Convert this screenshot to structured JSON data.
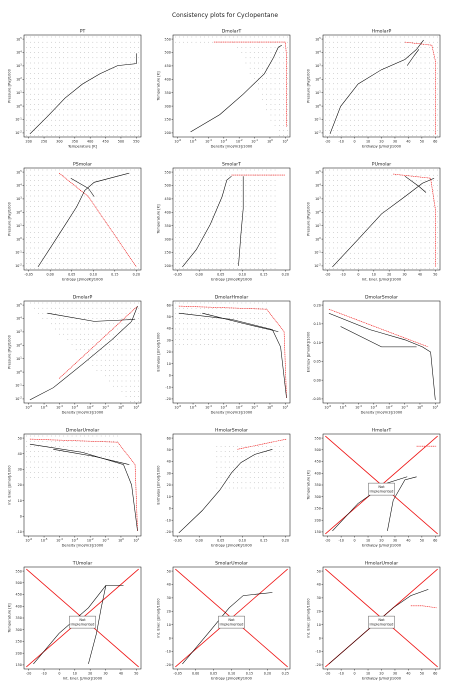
{
  "figure": {
    "title": "Consistency plots for Cyclopentane"
  },
  "colors": {
    "main_curve": "#000000",
    "dots": "#000000",
    "reference": "#ee1111",
    "frame": "#000000"
  },
  "chart_data": [
    {
      "id": "PT",
      "type": "line",
      "title": "PT",
      "xlabel": "Temperature [K]",
      "ylabel": "Pressure [Pa]/1000",
      "xscale": "linear",
      "yscale": "log",
      "xticks": [
        "200",
        "250",
        "300",
        "350",
        "400",
        "450",
        "500",
        "550"
      ],
      "yticks": [
        "10^-2",
        "10^-1",
        "10^0",
        "10^1",
        "10^2",
        "10^3",
        "10^4",
        "10^5"
      ],
      "curves": [
        {
          "x": [
            180,
            220,
            260,
            300,
            340,
            380,
            420,
            460,
            490,
            511
          ],
          "y": [
            0.01,
            0.09,
            0.6,
            3,
            10,
            40,
            120,
            450,
            1200,
            4500
          ]
        }
      ]
    },
    {
      "id": "DmolarT",
      "type": "line",
      "title": "DmolarT",
      "xlabel": "Density [mol/m3]/1000",
      "ylabel": "Temperature [K]",
      "xscale": "log",
      "yscale": "linear",
      "xticks": [
        "10^-6",
        "10^-5",
        "10^-4",
        "10^-3",
        "10^-2",
        "10^-1",
        "10^0",
        "10^1"
      ],
      "yticks": [
        "200",
        "250",
        "300",
        "350",
        "400",
        "450",
        "500",
        "550"
      ]
    },
    {
      "id": "HmolarP",
      "type": "line",
      "title": "HmolarP",
      "xlabel": "Enthalpy [J/mol]/1000",
      "ylabel": "Pressure [Pa]/1000",
      "xscale": "linear",
      "yscale": "log",
      "xticks": [
        "-20",
        "-10",
        "0",
        "10",
        "20",
        "30",
        "40",
        "50",
        "60"
      ],
      "yticks": [
        "10^-2",
        "10^-1",
        "10^0",
        "10^1",
        "10^2",
        "10^3",
        "10^4",
        "10^5"
      ]
    },
    {
      "id": "PSmolar",
      "type": "line",
      "title": "PSmolar",
      "xlabel": "Entropy [J/mol/K]/1000",
      "ylabel": "Pressure [Pa]/1000",
      "xscale": "linear",
      "yscale": "log",
      "xticks": [
        "-0.05",
        "0.00",
        "0.05",
        "0.10",
        "0.15",
        "0.20"
      ],
      "yticks": [
        "10^-2",
        "10^-1",
        "10^0",
        "10^1",
        "10^2",
        "10^3",
        "10^4",
        "10^5"
      ]
    },
    {
      "id": "SmolarT",
      "type": "line",
      "title": "SmolarT",
      "xlabel": "Entropy [J/mol/K]/1000",
      "ylabel": "Temperature [K]",
      "xscale": "linear",
      "yscale": "linear",
      "xticks": [
        "-0.05",
        "0.00",
        "0.05",
        "0.10",
        "0.15",
        "0.20"
      ],
      "yticks": [
        "200",
        "250",
        "300",
        "350",
        "400",
        "450",
        "500",
        "550"
      ]
    },
    {
      "id": "PUmolar",
      "type": "line",
      "title": "PUmolar",
      "xlabel": "Int. Ener. [J/mol]/1000",
      "ylabel": "Pressure [Pa]/1000",
      "xscale": "linear",
      "yscale": "log",
      "xticks": [
        "-20",
        "-10",
        "0",
        "10",
        "20",
        "30",
        "40",
        "50"
      ],
      "yticks": [
        "10^-2",
        "10^-1",
        "10^0",
        "10^1",
        "10^2",
        "10^3",
        "10^4",
        "10^5"
      ]
    },
    {
      "id": "DmolarP",
      "type": "line",
      "title": "DmolarP",
      "xlabel": "Density [mol/m3]/1000",
      "ylabel": "Pressure [Pa]/1000",
      "xscale": "log",
      "yscale": "log",
      "xticks": [
        "10^-6",
        "10^-5",
        "10^-4",
        "10^-3",
        "10^-2",
        "10^-1",
        "10^0",
        "10^1"
      ],
      "yticks": [
        "10^-2",
        "10^-1",
        "10^0",
        "10^1",
        "10^2",
        "10^3",
        "10^4",
        "10^5"
      ]
    },
    {
      "id": "DmolarHmolar",
      "type": "line",
      "title": "DmolarHmolar",
      "xlabel": "Density [mol/m3]/1000",
      "ylabel": "Enthalpy [J/mol]/1000",
      "xscale": "log",
      "yscale": "linear",
      "xticks": [
        "10^-6",
        "10^-5",
        "10^-4",
        "10^-3",
        "10^-2",
        "10^-1",
        "10^0",
        "10^1"
      ],
      "yticks": [
        "-20",
        "-10",
        "0",
        "10",
        "20",
        "30",
        "40",
        "50",
        "60"
      ]
    },
    {
      "id": "DmolarSmolar",
      "type": "line",
      "title": "DmolarSmolar",
      "xlabel": "Density [mol/m3]/1000",
      "ylabel": "Entropy [J/mol/K]/1000",
      "xscale": "log",
      "yscale": "linear",
      "xticks": [
        "10^-6",
        "10^-5",
        "10^-4",
        "10^-3",
        "10^-2",
        "10^-1",
        "10^0",
        "10^1"
      ],
      "yticks": [
        "-0.05",
        "0.00",
        "0.05",
        "0.10",
        "0.15",
        "0.20"
      ]
    },
    {
      "id": "DmolarUmolar",
      "type": "line",
      "title": "DmolarUmolar",
      "xlabel": "Density [mol/m3]/1000",
      "ylabel": "Int. Ener. [J/mol]/1000",
      "xscale": "log",
      "yscale": "linear",
      "xticks": [
        "10^-6",
        "10^-5",
        "10^-4",
        "10^-3",
        "10^-2",
        "10^-1",
        "10^0",
        "10^1"
      ],
      "yticks": [
        "-10",
        "0",
        "10",
        "20",
        "30",
        "40",
        "50"
      ]
    },
    {
      "id": "HmolarSmolar",
      "type": "line",
      "title": "HmolarSmolar",
      "xlabel": "Entropy [J/mol/K]/1000",
      "ylabel": "Enthalpy [J/mol]/1000",
      "xscale": "linear",
      "yscale": "linear",
      "xticks": [
        "-0.05",
        "0.00",
        "0.05",
        "0.10",
        "0.15",
        "0.20"
      ],
      "yticks": [
        "-20",
        "-10",
        "0",
        "10",
        "20",
        "30",
        "40",
        "50",
        "60"
      ]
    },
    {
      "id": "HmolarT",
      "type": "line",
      "title": "HmolarT",
      "xlabel": "Enthalpy [J/mol]/1000",
      "ylabel": "Temperature [K]",
      "xscale": "linear",
      "yscale": "linear",
      "xticks": [
        "-20",
        "-10",
        "0",
        "10",
        "20",
        "30",
        "40",
        "50",
        "60"
      ],
      "yticks": [
        "150",
        "200",
        "250",
        "300",
        "350",
        "400",
        "450",
        "500",
        "550"
      ],
      "annotation": "Not\nImplemented"
    },
    {
      "id": "TUmolar",
      "type": "line",
      "title": "TUmolar",
      "xlabel": "Int. Ener. [J/mol]/1000",
      "ylabel": "Temperature [K]",
      "xscale": "linear",
      "yscale": "linear",
      "xticks": [
        "-20",
        "-10",
        "0",
        "10",
        "20",
        "30",
        "40",
        "50"
      ],
      "yticks": [
        "150",
        "200",
        "250",
        "300",
        "350",
        "400",
        "450",
        "500",
        "550"
      ],
      "annotation": "Not\nImplemented"
    },
    {
      "id": "SmolarUmolar",
      "type": "line",
      "title": "SmolarUmolar",
      "xlabel": "Entropy [J/mol/K]/1000",
      "ylabel": "Int. Ener. [J/mol]/1000",
      "xscale": "linear",
      "yscale": "linear",
      "xticks": [
        "-0.05",
        "0.00",
        "0.05",
        "0.10",
        "0.15",
        "0.20",
        "0.25"
      ],
      "yticks": [
        "-20",
        "-10",
        "0",
        "10",
        "20",
        "30",
        "40",
        "50"
      ],
      "annotation": "Not\nImplemented"
    },
    {
      "id": "HmolarUmolar",
      "type": "line",
      "title": "HmolarUmolar",
      "xlabel": "Enthalpy [J/mol]/1000",
      "ylabel": "Int. Ener. [J/mol]/1000",
      "xscale": "linear",
      "yscale": "linear",
      "xticks": [
        "-20",
        "-10",
        "0",
        "10",
        "20",
        "30",
        "40",
        "50",
        "60"
      ],
      "yticks": [
        "-20",
        "-10",
        "0",
        "10",
        "20",
        "30",
        "40",
        "50"
      ],
      "annotation": "Not\nImplemented"
    }
  ]
}
